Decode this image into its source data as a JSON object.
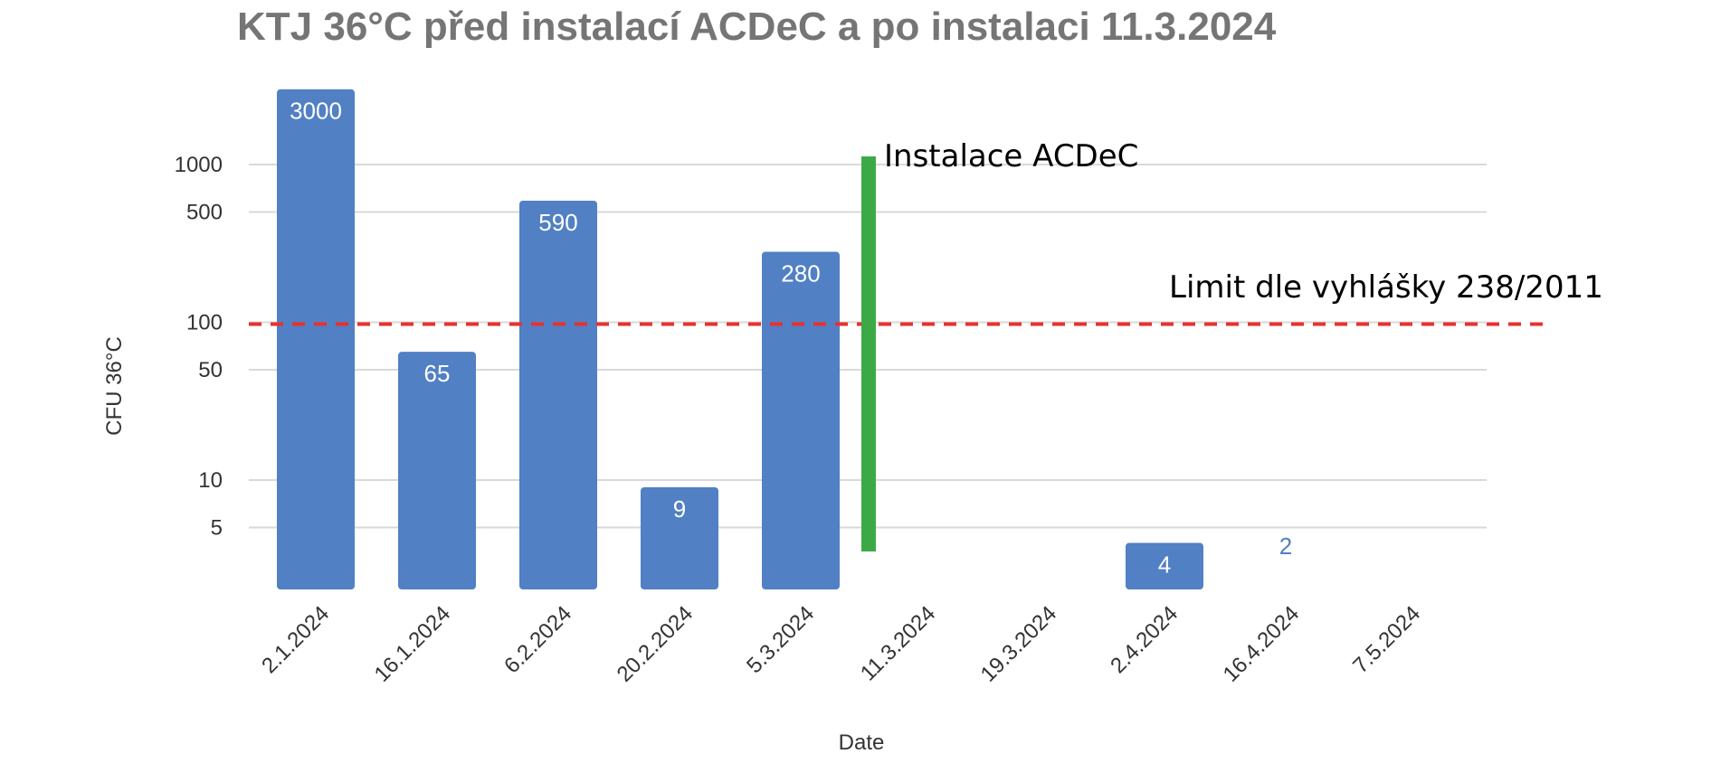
{
  "chart_data": {
    "type": "bar",
    "title": "KTJ 36°C před instalací ACDeC a po instalaci 11.3.2024",
    "xlabel": "Date",
    "ylabel": "CFU 36°C",
    "y_scale": "log",
    "y_ticks": [
      "1000",
      "500",
      "100",
      "50",
      "10",
      "5"
    ],
    "grid": true,
    "categories": [
      "2.1.2024",
      "16.1.2024",
      "6.2.2024",
      "20.2.2024",
      "5.3.2024",
      "11.3.2024",
      "19.3.2024",
      "2.4.2024",
      "16.4.2024",
      "7.5.2024"
    ],
    "values": [
      3000,
      65,
      590,
      9,
      280,
      null,
      null,
      4,
      2,
      null
    ],
    "data_labels": [
      "3000",
      "65",
      "590",
      "9",
      "280",
      "",
      "",
      "4",
      "2",
      ""
    ],
    "limit_value": 100,
    "annotations": {
      "installation_label": "Instalace ACDeC",
      "limit_label": "Limit dle vyhlášky 238/2011"
    },
    "colors": {
      "bar": "#5180C4",
      "limit_line": "#E8312E",
      "installation_marker": "#3BAA46",
      "grid": "#D9D9D9",
      "title": "#757575",
      "axis_text": "#333333"
    }
  }
}
